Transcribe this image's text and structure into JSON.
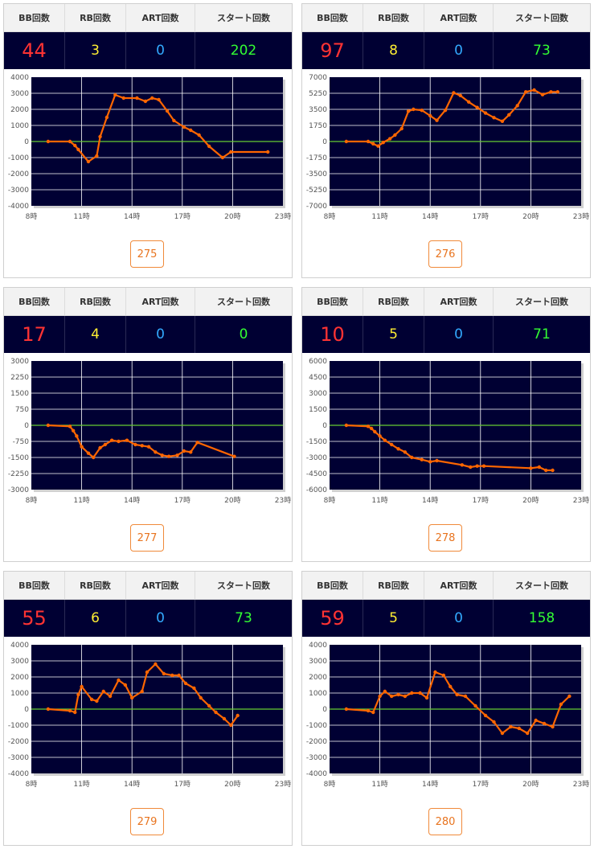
{
  "headers": {
    "bb": "BB回数",
    "rb": "RB回数",
    "art": "ART回数",
    "start": "スタート回数"
  },
  "colors": {
    "plot_bg": "#000033",
    "grid": "#ffffff",
    "zero_line": "#66cc33",
    "series": "#ff6600"
  },
  "cards": [
    {
      "number": "275",
      "bb": "44",
      "rb": "3",
      "art": "0",
      "start": "202",
      "chart_data": {
        "type": "line",
        "x_ticks": [
          "8時",
          "11時",
          "14時",
          "17時",
          "20時",
          "23時"
        ],
        "xlim": [
          8,
          23
        ],
        "y_ticks": [
          "4000",
          "3000",
          "2000",
          "1000",
          "0",
          "-1000",
          "-2000",
          "-3000",
          "-4000"
        ],
        "ylim": [
          -4000,
          4000
        ],
        "x": [
          9.0,
          10.3,
          10.6,
          10.8,
          11.4,
          11.9,
          12.1,
          12.5,
          13.0,
          13.5,
          14.3,
          14.8,
          15.2,
          15.6,
          16.1,
          16.5,
          17.1,
          17.5,
          18.0,
          18.6,
          19.4,
          19.9,
          22.1
        ],
        "y": [
          0,
          0,
          -250,
          -500,
          -1250,
          -900,
          300,
          1500,
          2900,
          2700,
          2700,
          2500,
          2700,
          2600,
          1900,
          1300,
          900,
          700,
          400,
          -300,
          -1000,
          -650,
          -650
        ]
      }
    },
    {
      "number": "276",
      "bb": "97",
      "rb": "8",
      "art": "0",
      "start": "73",
      "chart_data": {
        "type": "line",
        "x_ticks": [
          "8時",
          "11時",
          "14時",
          "17時",
          "20時",
          "23時"
        ],
        "xlim": [
          8,
          23
        ],
        "y_ticks": [
          "7000",
          "5250",
          "3500",
          "1750",
          "0",
          "-1750",
          "-3500",
          "-5250",
          "-7000"
        ],
        "ylim": [
          -7000,
          7000
        ],
        "x": [
          9.0,
          10.3,
          10.6,
          10.9,
          11.2,
          11.6,
          11.9,
          12.3,
          12.7,
          13.0,
          13.5,
          14.0,
          14.4,
          14.9,
          15.4,
          15.8,
          16.3,
          16.8,
          17.3,
          17.8,
          18.3,
          18.7,
          19.2,
          19.7,
          20.2,
          20.7,
          21.2,
          21.6
        ],
        "y": [
          0,
          0,
          -250,
          -500,
          -100,
          300,
          700,
          1400,
          3300,
          3500,
          3400,
          2800,
          2300,
          3400,
          5300,
          5000,
          4300,
          3700,
          3100,
          2600,
          2200,
          2900,
          3900,
          5400,
          5600,
          5100,
          5400,
          5400
        ]
      }
    },
    {
      "number": "277",
      "bb": "17",
      "rb": "4",
      "art": "0",
      "start": "0",
      "chart_data": {
        "type": "line",
        "x_ticks": [
          "8時",
          "11時",
          "14時",
          "17時",
          "20時",
          "23時"
        ],
        "xlim": [
          8,
          23
        ],
        "y_ticks": [
          "3000",
          "2250",
          "1500",
          "750",
          "0",
          "-750",
          "-1500",
          "-2250",
          "-3000"
        ],
        "ylim": [
          -3000,
          3000
        ],
        "x": [
          9.0,
          10.3,
          10.5,
          10.7,
          11.0,
          11.4,
          11.7,
          12.1,
          12.4,
          12.8,
          13.2,
          13.7,
          14.2,
          14.6,
          15.0,
          15.4,
          15.8,
          16.2,
          16.7,
          17.1,
          17.5,
          17.9,
          20.1
        ],
        "y": [
          0,
          -50,
          -250,
          -500,
          -1000,
          -1300,
          -1500,
          -1050,
          -900,
          -700,
          -750,
          -700,
          -900,
          -950,
          -1000,
          -1250,
          -1400,
          -1450,
          -1400,
          -1200,
          -1250,
          -800,
          -1450
        ]
      }
    },
    {
      "number": "278",
      "bb": "10",
      "rb": "5",
      "art": "0",
      "start": "71",
      "chart_data": {
        "type": "line",
        "x_ticks": [
          "8時",
          "11時",
          "14時",
          "17時",
          "20時",
          "23時"
        ],
        "xlim": [
          8,
          23
        ],
        "y_ticks": [
          "6000",
          "4500",
          "3000",
          "1500",
          "0",
          "-1500",
          "-3000",
          "-4500",
          "-6000"
        ],
        "ylim": [
          -6000,
          6000
        ],
        "x": [
          9.0,
          10.3,
          10.5,
          10.7,
          11.0,
          11.3,
          11.7,
          12.1,
          12.5,
          12.9,
          13.5,
          14.0,
          14.4,
          15.9,
          16.4,
          16.8,
          17.2,
          20.0,
          20.5,
          20.9,
          21.3
        ],
        "y": [
          0,
          -100,
          -300,
          -600,
          -1000,
          -1400,
          -1800,
          -2200,
          -2500,
          -3000,
          -3200,
          -3400,
          -3300,
          -3700,
          -3900,
          -3800,
          -3800,
          -4000,
          -3900,
          -4200,
          -4200
        ]
      }
    },
    {
      "number": "279",
      "bb": "55",
      "rb": "6",
      "art": "0",
      "start": "73",
      "chart_data": {
        "type": "line",
        "x_ticks": [
          "8時",
          "11時",
          "14時",
          "17時",
          "20時",
          "23時"
        ],
        "xlim": [
          8,
          23
        ],
        "y_ticks": [
          "4000",
          "3000",
          "2000",
          "1000",
          "0",
          "-1000",
          "-2000",
          "-3000",
          "-4000"
        ],
        "ylim": [
          -4000,
          4000
        ],
        "x": [
          9.0,
          10.3,
          10.6,
          10.8,
          11.0,
          11.6,
          11.9,
          12.3,
          12.7,
          13.2,
          13.6,
          14.0,
          14.6,
          14.9,
          15.4,
          15.9,
          16.4,
          16.8,
          17.2,
          17.7,
          18.1,
          18.6,
          19.0,
          19.5,
          19.9,
          20.3
        ],
        "y": [
          0,
          -100,
          -200,
          900,
          1400,
          600,
          500,
          1100,
          800,
          1800,
          1500,
          700,
          1100,
          2300,
          2800,
          2200,
          2100,
          2100,
          1600,
          1300,
          700,
          200,
          -200,
          -600,
          -1000,
          -400
        ]
      }
    },
    {
      "number": "280",
      "bb": "59",
      "rb": "5",
      "art": "0",
      "start": "158",
      "chart_data": {
        "type": "line",
        "x_ticks": [
          "8時",
          "11時",
          "14時",
          "17時",
          "20時",
          "23時"
        ],
        "xlim": [
          8,
          23
        ],
        "y_ticks": [
          "4000",
          "3000",
          "2000",
          "1000",
          "0",
          "-1000",
          "-2000",
          "-3000",
          "-4000"
        ],
        "ylim": [
          -4000,
          4000
        ],
        "x": [
          9.0,
          10.3,
          10.6,
          11.0,
          11.3,
          11.7,
          12.1,
          12.5,
          12.9,
          13.4,
          13.8,
          14.3,
          14.8,
          15.2,
          15.6,
          16.1,
          16.7,
          17.3,
          17.8,
          18.3,
          18.8,
          19.3,
          19.8,
          20.3,
          20.8,
          21.3,
          21.8,
          22.3
        ],
        "y": [
          0,
          -100,
          -200,
          800,
          1100,
          800,
          900,
          800,
          1000,
          1000,
          700,
          2300,
          2100,
          1400,
          900,
          800,
          200,
          -400,
          -800,
          -1500,
          -1100,
          -1200,
          -1500,
          -700,
          -900,
          -1100,
          300,
          800
        ]
      }
    }
  ]
}
